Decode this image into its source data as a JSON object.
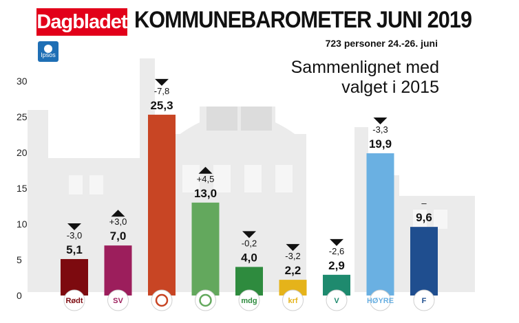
{
  "header": {
    "logo": "Dagbladet",
    "pollster": "Ipsos",
    "title": "KOMMUNEBAROMETER JUNI 2019",
    "subtitle": "723 personer 24.-26. juni",
    "comparison_line1": "Sammenlignet med",
    "comparison_line2": "valget i 2015"
  },
  "chart_data": {
    "type": "bar",
    "title": "KOMMUNEBAROMETER JUNI 2019",
    "subtitle": "723 personer 24.-26. juni",
    "xlabel": "",
    "ylabel": "",
    "ylim": [
      0,
      30
    ],
    "yticks": [
      0,
      5,
      10,
      15,
      20,
      25,
      30
    ],
    "grid": false,
    "legend": "none",
    "categories": [
      "Rødt",
      "SV",
      "Ap",
      "Sp",
      "MDG",
      "KrF",
      "V",
      "Høyre",
      "FrP"
    ],
    "values": [
      5.1,
      7.0,
      25.3,
      13.0,
      4.0,
      2.2,
      2.9,
      19.9,
      9.6
    ],
    "value_labels": [
      "5,1",
      "7,0",
      "25,3",
      "13,0",
      "4,0",
      "2,2",
      "2,9",
      "19,9",
      "9,6"
    ],
    "changes": [
      -3.0,
      3.0,
      -7.8,
      4.5,
      -0.2,
      -3.2,
      -2.6,
      -3.3,
      0
    ],
    "change_labels": [
      "-3,0",
      "+3,0",
      "-7,8",
      "+4,5",
      "-0,2",
      "-3,2",
      "-2,6",
      "-3,3",
      "–"
    ],
    "change_direction": [
      "down",
      "up",
      "down",
      "up",
      "down",
      "down",
      "down",
      "down",
      "none"
    ],
    "colors": [
      "#7d0a0f",
      "#9c1e5c",
      "#c84524",
      "#63a85d",
      "#2e8b3e",
      "#e5b31a",
      "#1e8a6e",
      "#6ab0e2",
      "#1f4e8f"
    ],
    "icons": [
      "rodt-star-icon",
      "sv-text-icon",
      "ap-rose-icon",
      "sp-clover-icon",
      "mdg-text-icon",
      "krf-text-icon",
      "venstre-v-icon",
      "hoyre-text-icon",
      "frp-flame-icon"
    ],
    "icon_text": [
      "Rødt",
      "SV",
      "",
      "",
      "mdg",
      "krf",
      "V",
      "HØYRE",
      "F"
    ]
  }
}
